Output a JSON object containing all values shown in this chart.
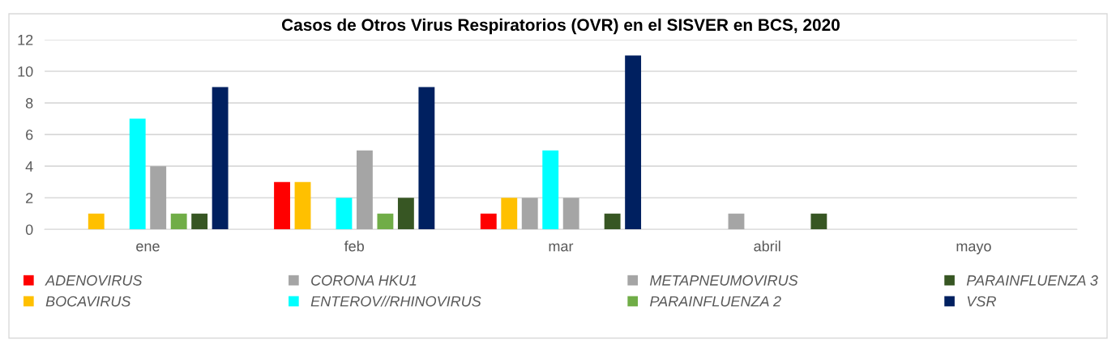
{
  "chart_data": {
    "type": "bar",
    "title": "Casos de Otros Virus Respiratorios (OVR) en el SISVER en BCS, 2020",
    "categories": [
      "ene",
      "feb",
      "mar",
      "abril",
      "mayo"
    ],
    "series": [
      {
        "name": "ADENOVIRUS",
        "color": "#ff0000",
        "values": [
          0,
          3,
          1,
          0,
          0
        ]
      },
      {
        "name": "BOCAVIRUS",
        "color": "#ffc000",
        "values": [
          1,
          3,
          2,
          0,
          0
        ]
      },
      {
        "name": "CORONA HKU1",
        "color": "#a5a5a5",
        "values": [
          0,
          0,
          2,
          1,
          0
        ]
      },
      {
        "name": "ENTEROV//RHINOVIRUS",
        "color": "#00ffff",
        "values": [
          7,
          2,
          5,
          0,
          0
        ]
      },
      {
        "name": "METAPNEUMOVIRUS",
        "color": "#a5a5a5",
        "values": [
          4,
          5,
          2,
          0,
          0
        ]
      },
      {
        "name": "PARAINFLUENZA 2",
        "color": "#70ad47",
        "values": [
          1,
          1,
          0,
          0,
          0
        ]
      },
      {
        "name": "PARAINFLUENZA 3",
        "color": "#375623",
        "values": [
          1,
          2,
          1,
          1,
          0
        ]
      },
      {
        "name": "VSR",
        "color": "#002060",
        "values": [
          9,
          9,
          11,
          0,
          0
        ]
      }
    ],
    "ylim": [
      0,
      12
    ],
    "yticks": [
      0,
      2,
      4,
      6,
      8,
      10,
      12
    ],
    "grid": "y",
    "legend": "bottom"
  }
}
